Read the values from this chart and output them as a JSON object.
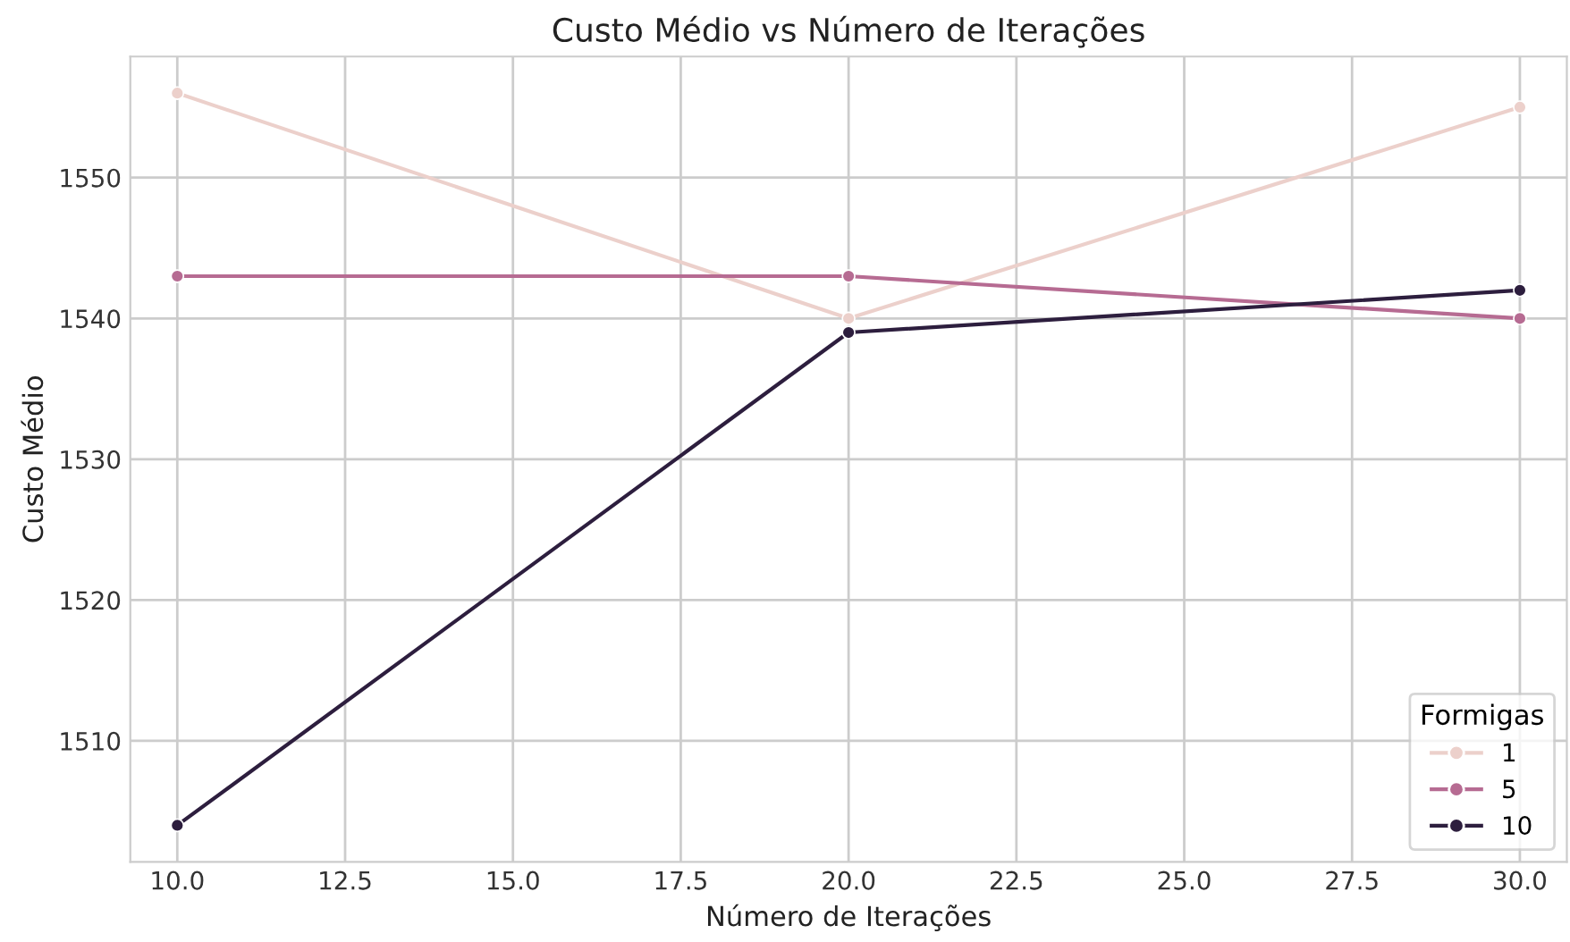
{
  "chart_data": {
    "type": "line",
    "title": "Custo Médio vs Número de Iterações",
    "xlabel": "Número de Iterações",
    "ylabel": "Custo Médio",
    "legend_title": "Formigas",
    "x": [
      10,
      20,
      30
    ],
    "series": [
      {
        "name": "1",
        "color": "#ecd0cb",
        "values": [
          1556,
          1540,
          1555
        ]
      },
      {
        "name": "5",
        "color": "#b66b92",
        "values": [
          1543,
          1543,
          1540
        ]
      },
      {
        "name": "10",
        "color": "#2d1e3e",
        "values": [
          1504,
          1539,
          1542
        ]
      }
    ],
    "xlim": [
      9.3,
      30.7
    ],
    "xticks": [
      {
        "value": 10,
        "label": "10.0"
      },
      {
        "value": 12.5,
        "label": "12.5"
      },
      {
        "value": 15,
        "label": "15.0"
      },
      {
        "value": 17.5,
        "label": "17.5"
      },
      {
        "value": 20,
        "label": "20.0"
      },
      {
        "value": 22.5,
        "label": "22.5"
      },
      {
        "value": 25,
        "label": "25.0"
      },
      {
        "value": 27.5,
        "label": "27.5"
      },
      {
        "value": 30,
        "label": "30.0"
      }
    ],
    "ylim": [
      1501.4,
      1558.6
    ],
    "yticks": [
      1510,
      1520,
      1530,
      1540,
      1550
    ],
    "grid": true,
    "legend": "bottom right",
    "marker": "circle",
    "line_style": "solid"
  }
}
